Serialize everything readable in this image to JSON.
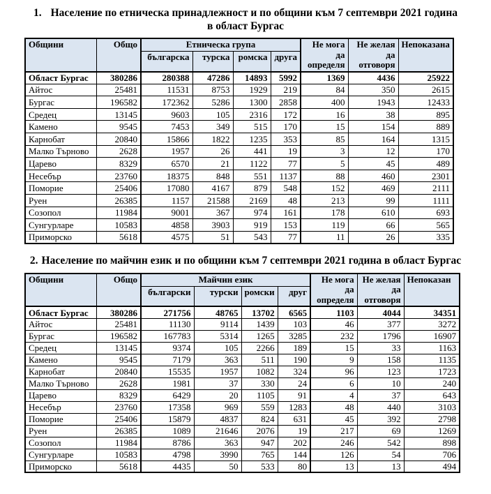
{
  "titles": {
    "t1_number": "1.",
    "t1_line1": "Население по етническа принадлежност и по общини към 7 септември 2021 година",
    "t1_line2": "в област Бургас",
    "t2_number": "2.",
    "t2_text": "Население по майчин език и по общини към 7 септември 2021 година в област Бургас"
  },
  "colors": {
    "header_bg": "#dbe5f1",
    "border": "#000000",
    "text": "#000000"
  },
  "tables": [
    {
      "name": "population-by-ethnicity",
      "header": {
        "col_municipality": "Общини",
        "col_total": "Общо",
        "group_label": "Етническа група",
        "group_cols": [
          "българска",
          "турска",
          "ромска",
          "друга"
        ],
        "col_cannot": "Не мога\nда\nопределя",
        "col_refuse": "Не желая\nда\nотговоря",
        "col_notshown": "Непоказана"
      },
      "rows": [
        {
          "name": "Област Бургас",
          "bold": true,
          "values": [
            380286,
            280388,
            47286,
            14893,
            5992,
            1369,
            4436,
            25922
          ]
        },
        {
          "name": "Айтос",
          "values": [
            25481,
            11531,
            8753,
            1929,
            219,
            84,
            350,
            2615
          ]
        },
        {
          "name": "Бургас",
          "values": [
            196582,
            172362,
            5286,
            1300,
            2858,
            400,
            1943,
            12433
          ]
        },
        {
          "name": "Средец",
          "values": [
            13145,
            9603,
            105,
            2316,
            172,
            16,
            38,
            895
          ]
        },
        {
          "name": "Камено",
          "values": [
            9545,
            7453,
            349,
            515,
            170,
            15,
            154,
            889
          ]
        },
        {
          "name": "Карнобат",
          "values": [
            20840,
            15866,
            1822,
            1235,
            353,
            85,
            164,
            1315
          ]
        },
        {
          "name": "Малко Търново",
          "values": [
            2628,
            1957,
            26,
            441,
            19,
            3,
            12,
            170
          ]
        },
        {
          "name": "Царево",
          "values": [
            8329,
            6570,
            21,
            1122,
            77,
            5,
            45,
            489
          ]
        },
        {
          "name": "Несебър",
          "values": [
            23760,
            18375,
            848,
            551,
            1137,
            88,
            460,
            2301
          ]
        },
        {
          "name": "Поморие",
          "values": [
            25406,
            17080,
            4167,
            879,
            548,
            152,
            469,
            2111
          ]
        },
        {
          "name": "Руен",
          "values": [
            26385,
            1157,
            21588,
            2169,
            48,
            213,
            99,
            1111
          ]
        },
        {
          "name": "Созопол",
          "values": [
            11984,
            9001,
            367,
            974,
            161,
            178,
            610,
            693
          ]
        },
        {
          "name": "Сунгурларе",
          "values": [
            10583,
            4858,
            3903,
            919,
            153,
            119,
            66,
            565
          ]
        },
        {
          "name": "Приморско",
          "values": [
            5618,
            4575,
            51,
            543,
            77,
            11,
            26,
            335
          ]
        }
      ]
    },
    {
      "name": "population-by-mother-tongue",
      "header": {
        "col_municipality": "Общини",
        "col_total": "Общо",
        "group_label": "Майчин език",
        "group_cols": [
          "български",
          "турски",
          "ромски",
          "друг"
        ],
        "col_cannot": "Не мога\nда\nопределя",
        "col_refuse": "Не желая\nда\nотговоря",
        "col_notshown": "Непоказан"
      },
      "rows": [
        {
          "name": "Област Бургас",
          "bold": true,
          "values": [
            380286,
            271756,
            48765,
            13702,
            6565,
            1103,
            4044,
            34351
          ]
        },
        {
          "name": "Айтос",
          "values": [
            25481,
            11130,
            9114,
            1439,
            103,
            46,
            377,
            3272
          ]
        },
        {
          "name": "Бургас",
          "values": [
            196582,
            167783,
            5314,
            1265,
            3285,
            232,
            1796,
            16907
          ]
        },
        {
          "name": "Средец",
          "values": [
            13145,
            9374,
            105,
            2266,
            189,
            15,
            33,
            1163
          ]
        },
        {
          "name": "Камено",
          "values": [
            9545,
            7179,
            363,
            511,
            190,
            9,
            158,
            1135
          ]
        },
        {
          "name": "Карнобат",
          "values": [
            20840,
            15535,
            1957,
            1082,
            324,
            96,
            123,
            1723
          ]
        },
        {
          "name": "Малко Търново",
          "values": [
            2628,
            1981,
            37,
            330,
            24,
            6,
            10,
            240
          ]
        },
        {
          "name": "Царево",
          "values": [
            8329,
            6429,
            20,
            1105,
            91,
            4,
            37,
            643
          ]
        },
        {
          "name": "Несебър",
          "values": [
            23760,
            17358,
            969,
            559,
            1283,
            48,
            440,
            3103
          ]
        },
        {
          "name": "Поморие",
          "values": [
            25406,
            15879,
            4837,
            824,
            631,
            45,
            392,
            2798
          ]
        },
        {
          "name": "Руен",
          "values": [
            26385,
            1089,
            21646,
            2076,
            19,
            217,
            69,
            1269
          ]
        },
        {
          "name": "Созопол",
          "values": [
            11984,
            8786,
            363,
            947,
            202,
            246,
            542,
            898
          ]
        },
        {
          "name": "Сунгурларе",
          "values": [
            10583,
            4798,
            3990,
            765,
            144,
            126,
            54,
            706
          ]
        },
        {
          "name": "Приморско",
          "values": [
            5618,
            4435,
            50,
            533,
            80,
            13,
            13,
            494
          ]
        }
      ]
    }
  ]
}
